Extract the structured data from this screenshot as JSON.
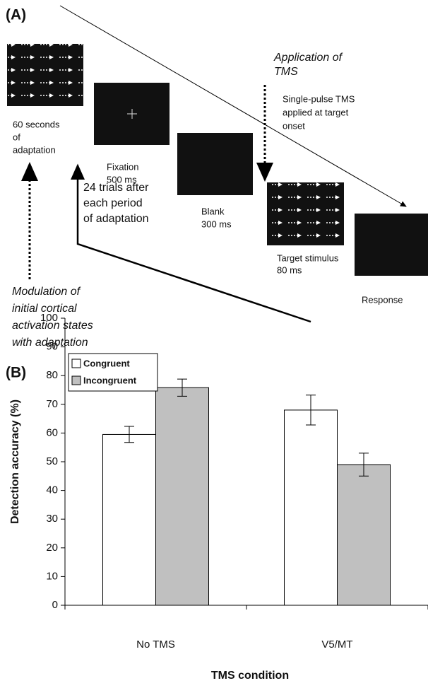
{
  "panel_a": {
    "label": "(A)",
    "stages": [
      {
        "lines": [
          "60 seconds",
          "of",
          "adaptation"
        ]
      },
      {
        "lines": [
          "Fixation",
          "500 ms"
        ]
      },
      {
        "lines": [
          "Blank",
          "300 ms"
        ]
      },
      {
        "lines": [
          "Target stimulus",
          "80 ms"
        ]
      },
      {
        "lines": [
          "Response"
        ]
      }
    ],
    "tms_label": [
      "Application of",
      "TMS"
    ],
    "tms_note": [
      "Single-pulse TMS",
      "applied at target",
      "onset"
    ],
    "loop_note": [
      "24 trials after",
      "each period",
      "of adaptation"
    ],
    "modulation_note": [
      "Modulation of",
      "initial cortical",
      "activation states",
      "with adaptation"
    ]
  },
  "chart_data": {
    "type": "bar",
    "panel_label": "(B)",
    "ylabel": "Detection accuracy (%)",
    "xlabel": "TMS condition",
    "categories": [
      "No TMS",
      "V5/MT"
    ],
    "series": [
      {
        "name": "Congruent",
        "color": "#ffffff",
        "values": [
          59.5,
          68
        ],
        "errors": [
          2.8,
          5.2
        ]
      },
      {
        "name": "Incongruent",
        "color": "#c0c0c0",
        "values": [
          75.8,
          49
        ],
        "errors": [
          3,
          4
        ]
      }
    ],
    "ylim": [
      0,
      100
    ],
    "yticks": [
      0,
      10,
      20,
      30,
      40,
      50,
      60,
      70,
      80,
      90,
      100
    ],
    "legend": "upper left"
  }
}
